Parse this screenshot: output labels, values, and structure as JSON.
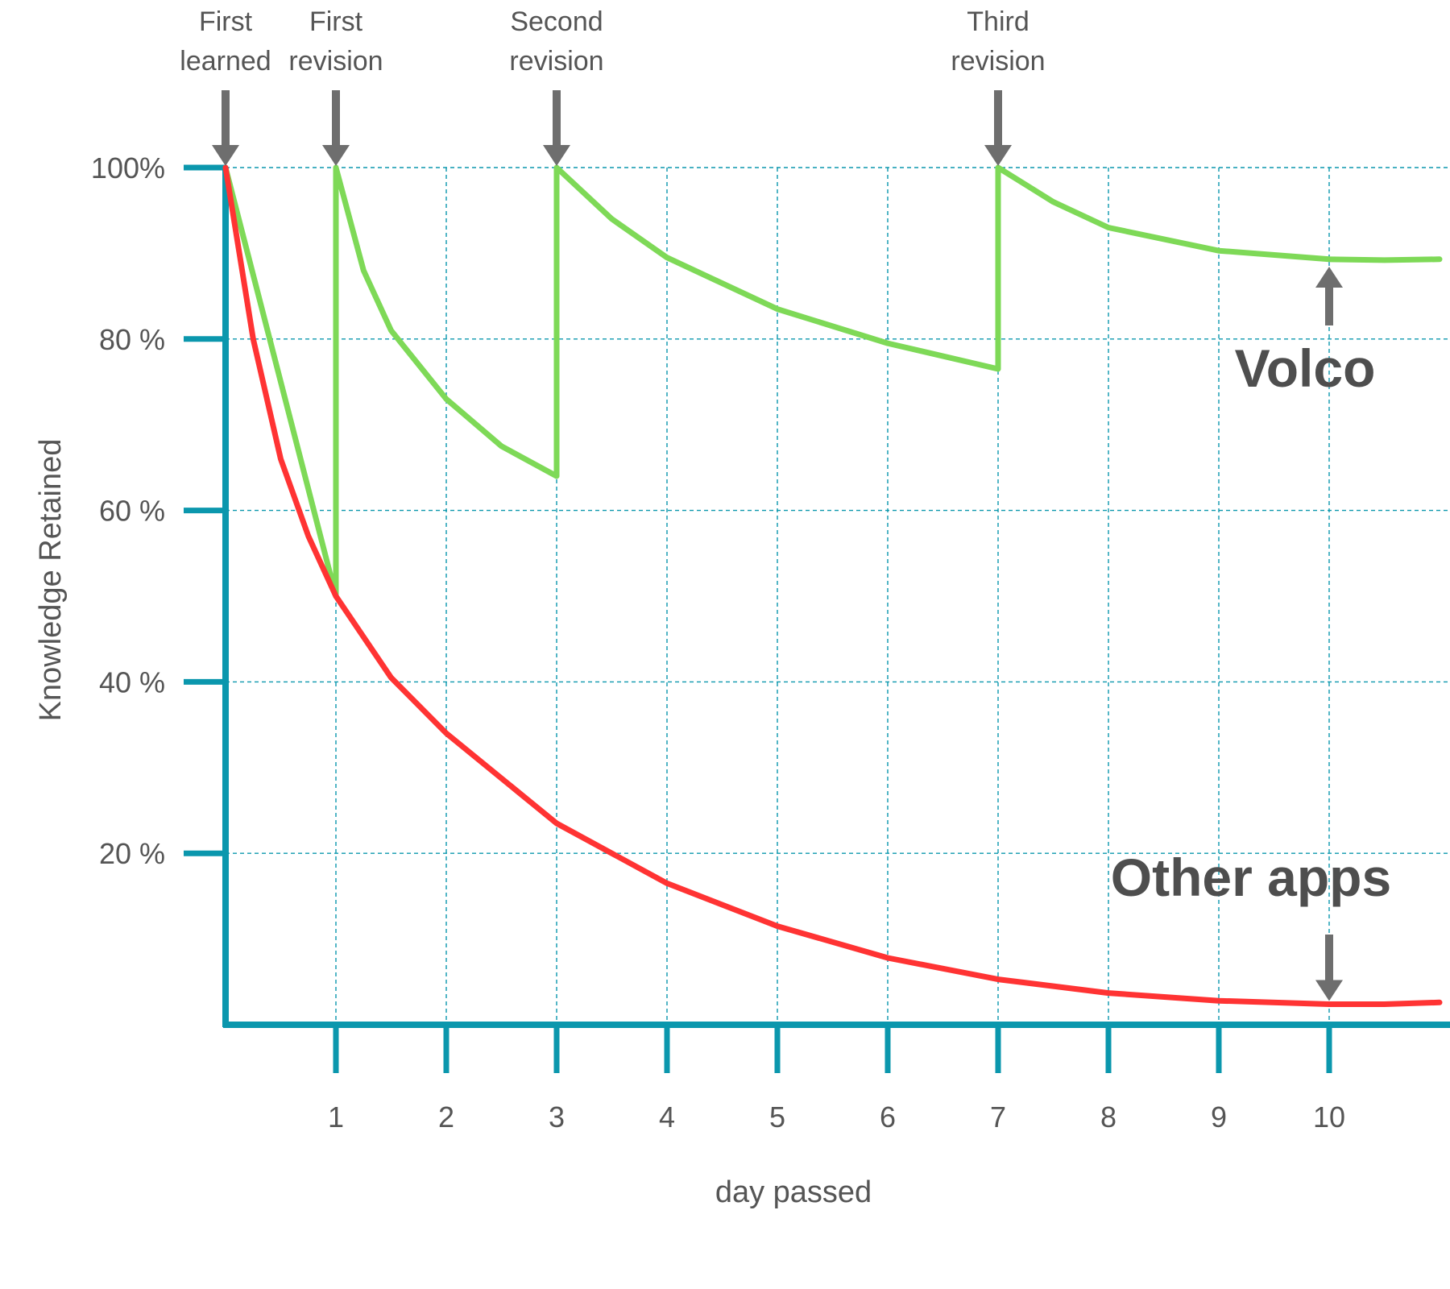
{
  "chart_data": {
    "type": "line",
    "xlabel": "day passed",
    "ylabel": "Knowledge Retained",
    "xlim": [
      0,
      11
    ],
    "ylim": [
      0,
      100
    ],
    "x_ticks": [
      {
        "value": 1,
        "label": "1"
      },
      {
        "value": 2,
        "label": "2"
      },
      {
        "value": 3,
        "label": "3"
      },
      {
        "value": 4,
        "label": "4"
      },
      {
        "value": 5,
        "label": "5"
      },
      {
        "value": 6,
        "label": "6"
      },
      {
        "value": 7,
        "label": "7"
      },
      {
        "value": 8,
        "label": "8"
      },
      {
        "value": 9,
        "label": "9"
      },
      {
        "value": 10,
        "label": "10"
      }
    ],
    "y_ticks": [
      {
        "value": 20,
        "label": "20 %"
      },
      {
        "value": 40,
        "label": "40 %"
      },
      {
        "value": 60,
        "label": "60 %"
      },
      {
        "value": 80,
        "label": "80 %"
      },
      {
        "value": 100,
        "label": "100%"
      }
    ],
    "grid": true,
    "series": [
      {
        "name": "Volco",
        "color": "#7ed957",
        "points": [
          [
            0,
            100
          ],
          [
            1,
            50
          ],
          [
            1,
            100
          ],
          [
            1.25,
            88
          ],
          [
            1.5,
            81
          ],
          [
            2,
            73
          ],
          [
            2.5,
            67.5
          ],
          [
            3,
            64
          ],
          [
            3,
            100
          ],
          [
            3.5,
            94
          ],
          [
            4,
            89.5
          ],
          [
            5,
            83.5
          ],
          [
            6,
            79.5
          ],
          [
            7,
            76.5
          ],
          [
            7,
            100
          ],
          [
            7.5,
            96
          ],
          [
            8,
            93
          ],
          [
            9,
            90.3
          ],
          [
            10,
            89.3
          ],
          [
            10.5,
            89.2
          ],
          [
            11,
            89.3
          ]
        ]
      },
      {
        "name": "Other apps",
        "color": "#ff3333",
        "points": [
          [
            0,
            100
          ],
          [
            0.25,
            80
          ],
          [
            0.5,
            66
          ],
          [
            0.75,
            57
          ],
          [
            1,
            50
          ],
          [
            1.5,
            40.5
          ],
          [
            2,
            34
          ],
          [
            3,
            23.5
          ],
          [
            4,
            16.5
          ],
          [
            5,
            11.5
          ],
          [
            6,
            7.8
          ],
          [
            7,
            5.3
          ],
          [
            8,
            3.7
          ],
          [
            9,
            2.8
          ],
          [
            10,
            2.4
          ],
          [
            10.5,
            2.4
          ],
          [
            11,
            2.6
          ]
        ]
      }
    ],
    "annotations": [
      {
        "text": "First learned",
        "lines": [
          "First",
          "learned"
        ],
        "x": 0,
        "y": 100
      },
      {
        "text": "First revision",
        "lines": [
          "First",
          "revision"
        ],
        "x": 1,
        "y": 100
      },
      {
        "text": "Second revision",
        "lines": [
          "Second",
          "revision"
        ],
        "x": 3,
        "y": 100
      },
      {
        "text": "Third revision",
        "lines": [
          "Third",
          "revision"
        ],
        "x": 7,
        "y": 100
      }
    ],
    "series_labels": [
      {
        "text": "Volco",
        "x": 10,
        "y": 89
      },
      {
        "text": "Other apps",
        "x": 10,
        "y": 2.4
      }
    ]
  },
  "colors": {
    "axis": "#0b97ad",
    "grid": "#0b97ad",
    "arrow": "#6e6e6e",
    "text": "#555555"
  }
}
